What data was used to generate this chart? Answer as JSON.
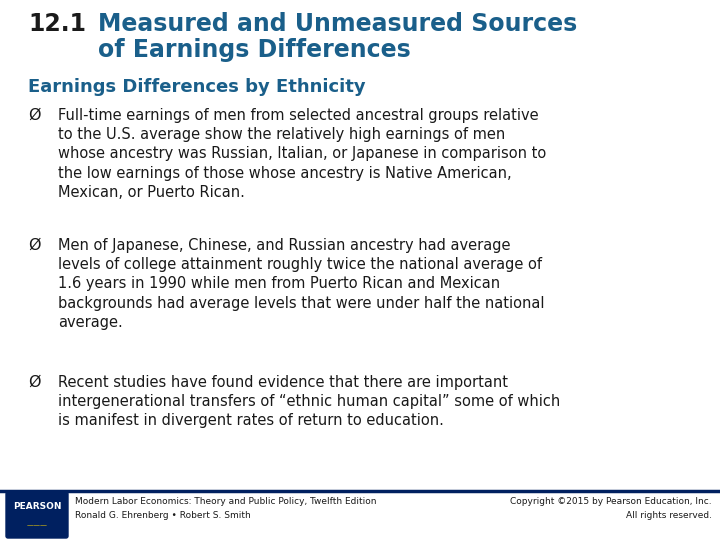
{
  "title_number": "12.1",
  "title_line1": "Measured and Unmeasured Sources",
  "title_line2": "of Earnings Differences",
  "subtitle": "Earnings Differences by Ethnicity",
  "bullet1": "Full-time earnings of men from selected ancestral groups relative\nto the U.S. average show the relatively high earnings of men\nwhose ancestry was Russian, Italian, or Japanese in comparison to\nthe low earnings of those whose ancestry is Native American,\nMexican, or Puerto Rican.",
  "bullet2": "Men of Japanese, Chinese, and Russian ancestry had average\nlevels of college attainment roughly twice the national average of\n1.6 years in 1990 while men from Puerto Rican and Mexican\nbackgrounds had average levels that were under half the national\naverage.",
  "bullet3": "Recent studies have found evidence that there are important\nintergenerational transfers of “ethnic human capital” some of which\nis manifest in divergent rates of return to education.",
  "footer_left1": "Modern Labor Economics: Theory and Public Policy, Twelfth Edition",
  "footer_left2": "Ronald G. Ehrenberg • Robert S. Smith",
  "footer_right1": "Copyright ©2015 by Pearson Education, Inc.",
  "footer_right2": "All rights reserved.",
  "footer_logo": "PEARSON",
  "title_number_color": "#1a1a1a",
  "title_color": "#1a5f8a",
  "subtitle_color": "#1a5f8a",
  "bullet_color": "#1a1a1a",
  "footer_line_color": "#002060",
  "bg_color": "#ffffff",
  "title_number_fontsize": 17,
  "title_fontsize": 17,
  "subtitle_fontsize": 13,
  "bullet_fontsize": 10.5,
  "footer_fontsize": 6.5
}
